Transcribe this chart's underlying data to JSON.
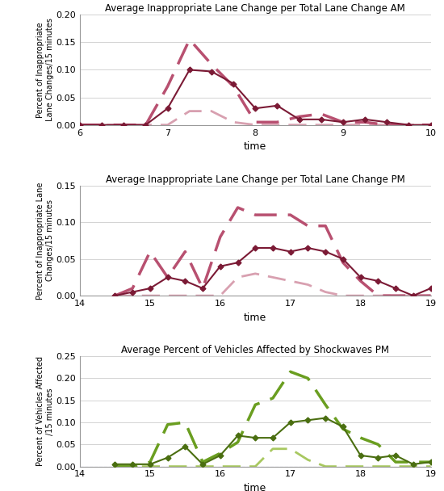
{
  "chart1": {
    "title": "Average Inappropriate Lane Change per Total Lane Change AM",
    "ylabel": "Percent of Inappropriate\nLane Changes/15 minutes",
    "xlabel": "time",
    "xlim": [
      6,
      10
    ],
    "ylim": [
      0,
      0.2
    ],
    "yticks": [
      0,
      0.05,
      0.1,
      0.15,
      0.2
    ],
    "xticks": [
      6,
      7,
      8,
      9,
      10
    ],
    "solid_x": [
      6.0,
      6.25,
      6.5,
      6.75,
      7.0,
      7.25,
      7.5,
      7.75,
      8.0,
      8.25,
      8.5,
      8.75,
      9.0,
      9.25,
      9.5,
      9.75,
      10.0
    ],
    "solid_y": [
      0.0,
      0.0,
      0.0,
      0.0,
      0.03,
      0.1,
      0.097,
      0.075,
      0.03,
      0.035,
      0.01,
      0.01,
      0.005,
      0.01,
      0.005,
      0.0,
      0.0
    ],
    "dashed_x": [
      6.0,
      6.25,
      6.5,
      6.75,
      7.0,
      7.25,
      7.5,
      7.75,
      8.0,
      8.25,
      8.5,
      8.75,
      9.0,
      9.25,
      9.5,
      9.75,
      10.0
    ],
    "dashed_y": [
      0.0,
      0.0,
      0.0,
      0.0,
      0.07,
      0.155,
      0.11,
      0.07,
      0.005,
      0.005,
      0.015,
      0.02,
      0.005,
      0.005,
      0.0,
      0.0,
      0.0
    ],
    "light_x": [
      6.0,
      6.25,
      6.5,
      6.75,
      7.0,
      7.25,
      7.5,
      7.75,
      8.0,
      8.25,
      8.5,
      8.75,
      9.0,
      9.25,
      9.5,
      9.75,
      10.0
    ],
    "light_y": [
      0.0,
      0.0,
      0.0,
      0.0,
      0.0,
      0.025,
      0.025,
      0.005,
      0.0,
      0.0,
      0.0,
      0.0,
      0.0,
      0.0,
      0.0,
      0.0,
      0.0
    ],
    "solid_color": "#7B1A35",
    "dashed_color": "#B85070",
    "light_color": "#D8A0B0"
  },
  "chart2": {
    "title": "Average Inappropriate Lane Change per Total Lane Change PM",
    "ylabel": "Percent of Inappropriate Lane\nChanges/15 minutes",
    "xlabel": "time",
    "xlim": [
      14,
      19
    ],
    "ylim": [
      0,
      0.15
    ],
    "yticks": [
      0,
      0.05,
      0.1,
      0.15
    ],
    "xticks": [
      14,
      15,
      16,
      17,
      18,
      19
    ],
    "solid_x": [
      14.5,
      14.75,
      15.0,
      15.25,
      15.5,
      15.75,
      16.0,
      16.25,
      16.5,
      16.75,
      17.0,
      17.25,
      17.5,
      17.75,
      18.0,
      18.25,
      18.5,
      18.75,
      19.0
    ],
    "solid_y": [
      0.0,
      0.005,
      0.01,
      0.025,
      0.02,
      0.01,
      0.04,
      0.045,
      0.065,
      0.065,
      0.06,
      0.065,
      0.06,
      0.05,
      0.025,
      0.02,
      0.01,
      0.0,
      0.01
    ],
    "dashed_x": [
      14.5,
      14.75,
      15.0,
      15.25,
      15.5,
      15.75,
      16.0,
      16.25,
      16.5,
      16.75,
      17.0,
      17.25,
      17.5,
      17.75,
      18.0,
      18.25,
      18.5,
      18.75,
      19.0
    ],
    "dashed_y": [
      0.0,
      0.01,
      0.06,
      0.025,
      0.06,
      0.01,
      0.08,
      0.12,
      0.11,
      0.11,
      0.11,
      0.095,
      0.095,
      0.045,
      0.02,
      0.0,
      0.0,
      0.0,
      0.0
    ],
    "light_x": [
      14.5,
      14.75,
      15.0,
      15.25,
      15.5,
      15.75,
      16.0,
      16.25,
      16.5,
      16.75,
      17.0,
      17.25,
      17.5,
      17.75,
      18.0,
      18.25,
      18.5,
      18.75,
      19.0
    ],
    "light_y": [
      0.0,
      0.0,
      0.0,
      0.0,
      0.0,
      0.0,
      0.0,
      0.025,
      0.03,
      0.025,
      0.02,
      0.015,
      0.005,
      0.0,
      0.0,
      0.0,
      0.0,
      0.0,
      0.0
    ],
    "solid_color": "#7B1A35",
    "dashed_color": "#B85070",
    "light_color": "#D8A0B0"
  },
  "chart3": {
    "title": "Average Percent of Vehicles Affected by Shockwaves PM",
    "ylabel": "Percent of Vehicles Affected\n/15 minutes",
    "xlabel": "time",
    "xlim": [
      14,
      19
    ],
    "ylim": [
      0,
      0.25
    ],
    "yticks": [
      0,
      0.05,
      0.1,
      0.15,
      0.2,
      0.25
    ],
    "xticks": [
      14,
      15,
      16,
      17,
      18,
      19
    ],
    "solid_x": [
      14.5,
      14.75,
      15.0,
      15.25,
      15.5,
      15.75,
      16.0,
      16.25,
      16.5,
      16.75,
      17.0,
      17.25,
      17.5,
      17.75,
      18.0,
      18.25,
      18.5,
      18.75,
      19.0
    ],
    "solid_y": [
      0.005,
      0.005,
      0.005,
      0.02,
      0.045,
      0.005,
      0.025,
      0.07,
      0.065,
      0.065,
      0.1,
      0.105,
      0.11,
      0.09,
      0.025,
      0.02,
      0.025,
      0.005,
      0.01
    ],
    "dashed_x": [
      14.5,
      14.75,
      15.0,
      15.25,
      15.5,
      15.75,
      16.0,
      16.25,
      16.5,
      16.75,
      17.0,
      17.25,
      17.5,
      17.75,
      18.0,
      18.25,
      18.5,
      18.75,
      19.0
    ],
    "dashed_y": [
      0.0,
      0.0,
      0.01,
      0.095,
      0.1,
      0.01,
      0.03,
      0.055,
      0.14,
      0.155,
      0.215,
      0.2,
      0.14,
      0.085,
      0.065,
      0.05,
      0.01,
      0.01,
      0.01
    ],
    "light_x": [
      14.5,
      14.75,
      15.0,
      15.25,
      15.5,
      15.75,
      16.0,
      16.25,
      16.5,
      16.75,
      17.0,
      17.25,
      17.5,
      17.75,
      18.0,
      18.25,
      18.5,
      18.75,
      19.0
    ],
    "light_y": [
      0.0,
      0.0,
      0.0,
      0.0,
      0.0,
      0.0,
      0.0,
      0.0,
      0.0,
      0.04,
      0.04,
      0.015,
      0.0,
      0.0,
      0.0,
      0.0,
      0.0,
      0.0,
      0.0
    ],
    "solid_color": "#4A6E10",
    "dashed_color": "#6A9E20",
    "light_color": "#A8C860",
    "hline_color": "#9999CC",
    "hline_style": "--"
  }
}
